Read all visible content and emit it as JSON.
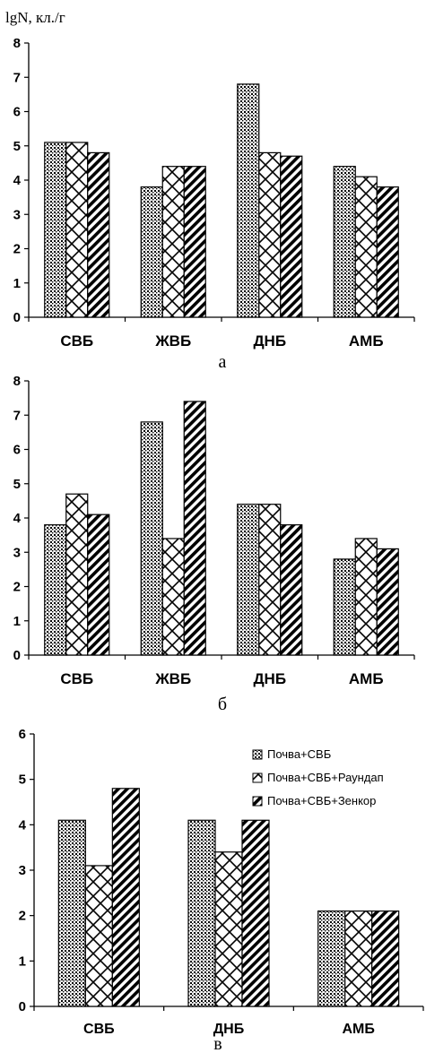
{
  "y_axis_label": "lgN, кл./г",
  "legend": [
    {
      "label": "Почва+СВБ",
      "pattern": "dots"
    },
    {
      "label": "Почва+СВБ+Раундап",
      "pattern": "lattice"
    },
    {
      "label": "Почва+СВБ+Зенкор",
      "pattern": "diagonal"
    }
  ],
  "colors": {
    "ink": "#000000",
    "background": "#ffffff"
  },
  "chart_data": [
    {
      "type": "bar",
      "subtitle": "а",
      "categories": [
        "СВБ",
        "ЖВБ",
        "ДНБ",
        "АМБ"
      ],
      "ylim": [
        0,
        8
      ],
      "yticks": [
        0,
        1,
        2,
        3,
        4,
        5,
        6,
        7,
        8
      ],
      "ylabel": "lgN, кл./г",
      "series": [
        {
          "pattern": "dots",
          "values": [
            5.1,
            3.8,
            6.8,
            4.4
          ]
        },
        {
          "pattern": "lattice",
          "values": [
            5.1,
            4.4,
            4.8,
            4.1
          ]
        },
        {
          "pattern": "diagonal",
          "values": [
            4.8,
            4.4,
            4.7,
            3.8
          ]
        }
      ]
    },
    {
      "type": "bar",
      "subtitle": "б",
      "categories": [
        "СВБ",
        "ЖВБ",
        "ДНБ",
        "АМБ"
      ],
      "ylim": [
        0,
        8
      ],
      "yticks": [
        0,
        1,
        2,
        3,
        4,
        5,
        6,
        7,
        8
      ],
      "series": [
        {
          "pattern": "dots",
          "values": [
            3.8,
            6.8,
            4.4,
            2.8
          ]
        },
        {
          "pattern": "lattice",
          "values": [
            4.7,
            3.4,
            4.4,
            3.4
          ]
        },
        {
          "pattern": "diagonal",
          "values": [
            4.1,
            7.4,
            3.8,
            3.1
          ]
        }
      ]
    },
    {
      "type": "bar",
      "subtitle": "в",
      "categories": [
        "СВБ",
        "ДНБ",
        "АМБ"
      ],
      "ylim": [
        0,
        6
      ],
      "yticks": [
        0,
        1,
        2,
        3,
        4,
        5,
        6
      ],
      "legend_position": "top-right",
      "series": [
        {
          "name": "Почва+СВБ",
          "pattern": "dots",
          "values": [
            4.1,
            4.1,
            2.1
          ]
        },
        {
          "name": "Почва+СВБ+Раундап",
          "pattern": "lattice",
          "values": [
            3.1,
            3.4,
            2.1
          ]
        },
        {
          "name": "Почва+СВБ+Зенкор",
          "pattern": "diagonal",
          "values": [
            4.8,
            4.1,
            2.1
          ]
        }
      ]
    }
  ]
}
